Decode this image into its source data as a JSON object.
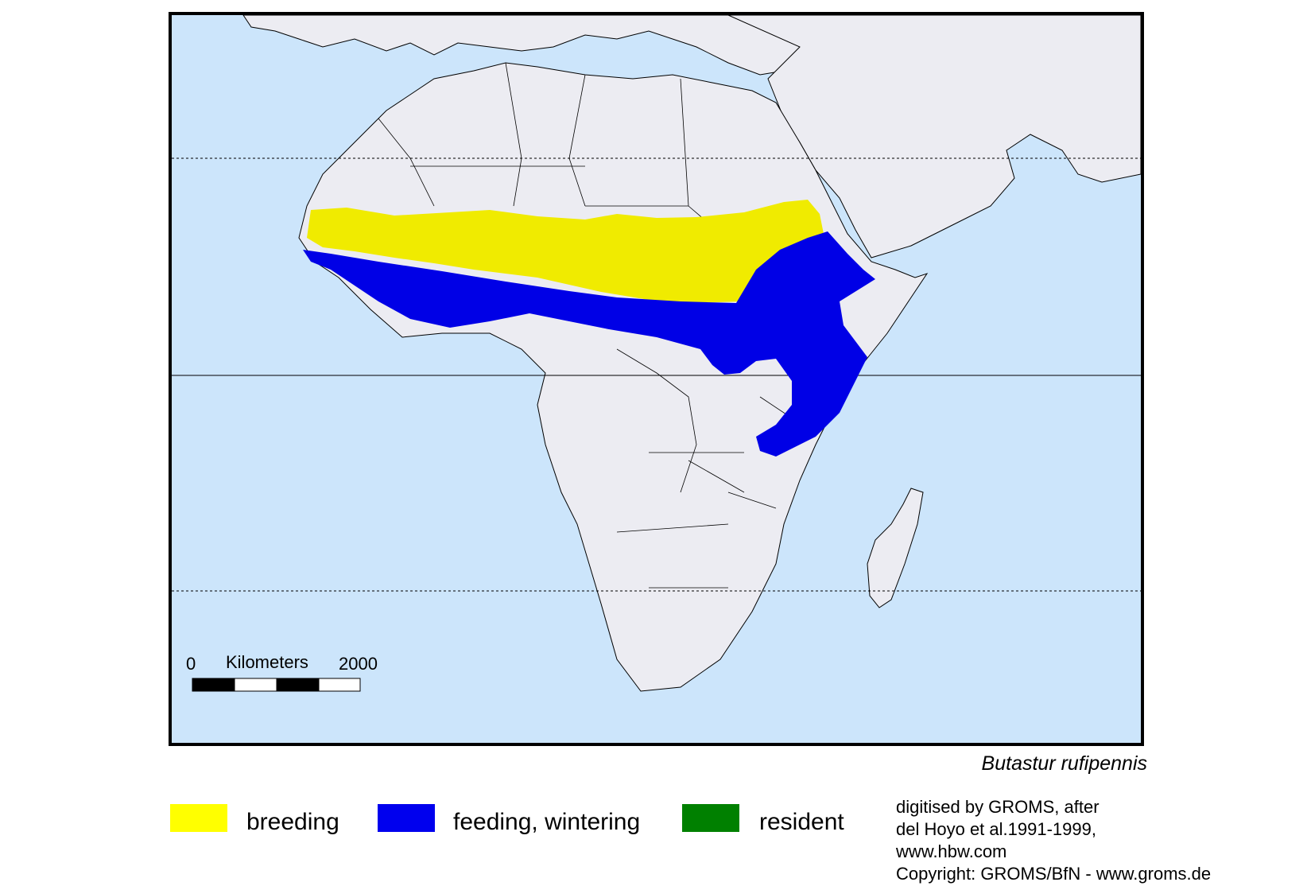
{
  "map": {
    "ocean_color": "#cce5fb",
    "land_color": "#ececf2",
    "border_color": "#000000",
    "river_color": "#3a3a8a"
  },
  "range": {
    "breeding_color": "#f0eb00",
    "feeding_color": "#0000e6",
    "resident_color": "#008000"
  },
  "scale_bar": {
    "start": "0",
    "unit": "Kilometers",
    "end": "2000"
  },
  "species": "Butastur rufipennis",
  "legend": [
    {
      "label": "breeding",
      "color": "#ffff00"
    },
    {
      "label": "feeding, wintering",
      "color": "#0000ee"
    },
    {
      "label": "resident",
      "color": "#008000"
    }
  ],
  "credits": [
    "digitised by GROMS, after",
    "del Hoyo et al.1991-1999,",
    "www.hbw.com",
    "Copyright: GROMS/BfN - www.groms.de"
  ]
}
